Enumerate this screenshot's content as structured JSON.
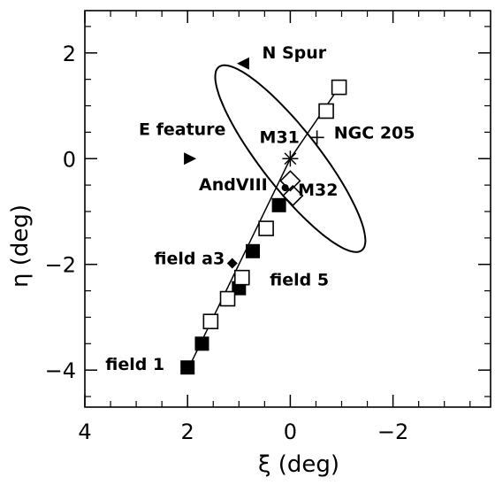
{
  "chart_data": {
    "type": "scatter",
    "title": "",
    "xlabel": "ξ (deg)",
    "ylabel": "η (deg)",
    "xlim": [
      4,
      -3.9
    ],
    "ylim": [
      -4.7,
      2.8
    ],
    "x_ticks": [
      4,
      2,
      0,
      -2
    ],
    "x_tick_labels": [
      "4",
      "2",
      "0",
      "−2"
    ],
    "y_ticks": [
      2,
      0,
      -2,
      -4
    ],
    "y_tick_labels": [
      "2",
      "0",
      "−2",
      "−4"
    ],
    "grid": false,
    "legend": "none",
    "series": [
      {
        "marker": "filled-square",
        "x": [
          2.0,
          1.72,
          1.0,
          0.73,
          0.22
        ],
        "y": [
          -3.95,
          -3.5,
          -2.45,
          -1.75,
          -0.88
        ]
      },
      {
        "marker": "open-square",
        "x": [
          1.55,
          1.22,
          0.94,
          0.47,
          -0.7,
          -0.95
        ],
        "y": [
          -3.08,
          -2.65,
          -2.25,
          -1.32,
          0.9,
          1.35
        ]
      },
      {
        "marker": "open-diamond",
        "x": [
          0.0,
          -0.05
        ],
        "y": [
          -0.42,
          -0.7
        ]
      },
      {
        "marker": "filled-diamond",
        "x": [
          1.13
        ],
        "y": [
          -1.98
        ]
      },
      {
        "marker": "filled-triangle-left",
        "x": [
          0.92
        ],
        "y": [
          1.8
        ]
      },
      {
        "marker": "filled-triangle-right",
        "x": [
          1.95
        ],
        "y": [
          0.0
        ]
      },
      {
        "marker": "dot",
        "x": [
          0.1
        ],
        "y": [
          -0.55
        ]
      },
      {
        "marker": "asterisk",
        "x": [
          0.0
        ],
        "y": [
          0.0
        ]
      },
      {
        "marker": "plus",
        "x": [
          -0.52
        ],
        "y": [
          0.4
        ]
      }
    ],
    "stream_line": {
      "x": [
        2.0,
        0.0,
        -0.95
      ],
      "y": [
        -4.0,
        0.0,
        1.35
      ]
    },
    "ellipse": {
      "center": [
        0.0,
        0.0
      ],
      "semi_major_deg": 2.2,
      "semi_minor_deg": 0.55,
      "position_angle_deg": 38
    },
    "annotations": [
      {
        "text": "N Spur",
        "x": 0.55,
        "y": 1.9
      },
      {
        "text": "E feature",
        "x": 2.95,
        "y": 0.45
      },
      {
        "text": "M31",
        "x": 0.6,
        "y": 0.3
      },
      {
        "text": "NGC 205",
        "x": -0.85,
        "y": 0.38
      },
      {
        "text": "AndVIII",
        "x": 1.78,
        "y": -0.6
      },
      {
        "text": "M32",
        "x": -0.15,
        "y": -0.7
      },
      {
        "text": "field a3",
        "x": 2.65,
        "y": -2.0
      },
      {
        "text": "field 5",
        "x": 0.4,
        "y": -2.4
      },
      {
        "text": "field 1",
        "x": 3.6,
        "y": -4.0
      }
    ]
  }
}
